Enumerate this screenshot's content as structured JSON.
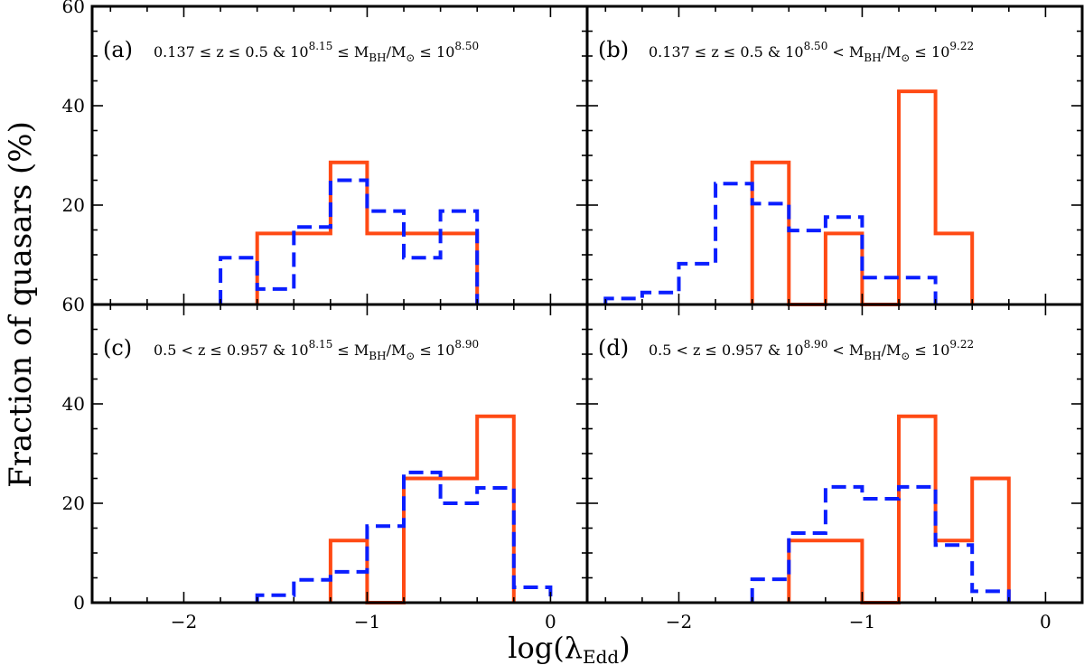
{
  "chart_data": {
    "type": "histogram-step",
    "ylabel": "Fraction of quasars (%)",
    "xlabel_main": "log(λ",
    "xlabel_sub": "Edd",
    "xlabel_close": ")",
    "xlim": [
      -2.5,
      0.2
    ],
    "ylim": [
      0,
      60
    ],
    "x_ticks": [
      -2,
      -1,
      0
    ],
    "x_tick_labels": [
      "−2",
      "−1",
      "0"
    ],
    "y_ticks": [
      0,
      20,
      40,
      60
    ],
    "y_tick_labels_top": [
      "",
      "20",
      "40",
      "60"
    ],
    "y_tick_labels_bottom": [
      "0",
      "20",
      "40",
      "60"
    ],
    "colors": {
      "solid": "#ff4a14",
      "dashed": "#0a1eff"
    },
    "panels": [
      {
        "id": "a",
        "label": "(a)",
        "condition": "0.137 ≤ z ≤ 0.5 & 10^8.15 ≤ M_BH/M_⊙ ≤ 10^8.50",
        "series": [
          {
            "name": "solid",
            "style": "solid",
            "edges": [
              -1.6,
              -1.2,
              -1.0,
              -0.4
            ],
            "values": [
              14.3,
              28.6,
              14.3
            ]
          },
          {
            "name": "dashed",
            "style": "dashed",
            "edges": [
              -1.8,
              -1.6,
              -1.4,
              -1.2,
              -1.0,
              -0.8,
              -0.6,
              -0.4
            ],
            "values": [
              9.4,
              3.1,
              15.6,
              25.0,
              18.8,
              9.4,
              18.8
            ]
          }
        ]
      },
      {
        "id": "b",
        "label": "(b)",
        "condition": "0.137 ≤ z ≤ 0.5 & 10^8.50 < M_BH/M_⊙ ≤ 10^9.22",
        "series": [
          {
            "name": "solid",
            "style": "solid",
            "edges": [
              -1.6,
              -1.4,
              -1.2,
              -1.0,
              -0.8,
              -0.6,
              -0.4
            ],
            "values": [
              28.6,
              0,
              14.3,
              0,
              42.9,
              14.3
            ]
          },
          {
            "name": "dashed",
            "style": "dashed",
            "edges": [
              -2.4,
              -2.2,
              -2.0,
              -1.8,
              -1.6,
              -1.4,
              -1.2,
              -1.0,
              -0.8,
              -0.6
            ],
            "values": [
              1.2,
              2.4,
              8.2,
              24.3,
              20.3,
              14.9,
              17.6,
              5.4,
              5.4
            ]
          }
        ]
      },
      {
        "id": "c",
        "label": "(c)",
        "condition": "0.5 < z ≤ 0.957 & 10^8.15 ≤ M_BH/M_⊙ ≤ 10^8.90",
        "series": [
          {
            "name": "solid",
            "style": "solid",
            "edges": [
              -1.2,
              -1.0,
              -0.8,
              -0.4,
              -0.2
            ],
            "values": [
              12.5,
              0,
              25.0,
              37.5
            ]
          },
          {
            "name": "dashed",
            "style": "dashed",
            "edges": [
              -1.6,
              -1.4,
              -1.2,
              -1.0,
              -0.8,
              -0.6,
              -0.4,
              -0.2,
              0.0
            ],
            "values": [
              1.5,
              4.6,
              6.2,
              15.4,
              26.2,
              20.0,
              23.1,
              3.1
            ]
          }
        ]
      },
      {
        "id": "d",
        "label": "(d)",
        "condition": "0.5 < z ≤ 0.957 & 10^8.90 < M_BH/M_⊙ ≤ 10^9.22",
        "series": [
          {
            "name": "solid",
            "style": "solid",
            "edges": [
              -1.4,
              -1.0,
              -0.8,
              -0.6,
              -0.4,
              -0.2
            ],
            "values": [
              12.5,
              0,
              37.5,
              12.5,
              25.0
            ]
          },
          {
            "name": "dashed",
            "style": "dashed",
            "edges": [
              -1.6,
              -1.4,
              -1.2,
              -1.0,
              -0.8,
              -0.6,
              -0.4,
              -0.2
            ],
            "values": [
              4.7,
              14.0,
              23.3,
              20.9,
              23.3,
              11.6,
              2.3
            ]
          }
        ]
      }
    ]
  }
}
